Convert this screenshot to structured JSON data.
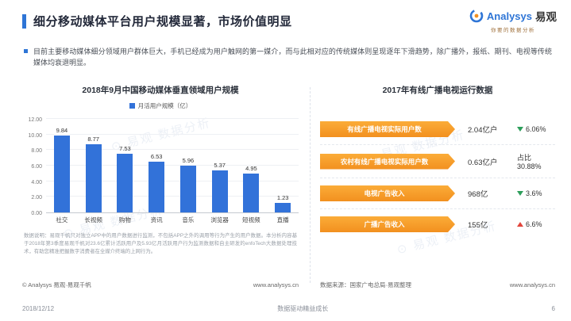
{
  "header": {
    "title": "细分移动媒体平台用户规模显著，市场价值明显",
    "accent_color": "#2E75D6"
  },
  "logo": {
    "brand_en": "Analysys",
    "brand_cn": "易观",
    "tagline": "你要的数据分析"
  },
  "intro": {
    "text": "目前主要移动媒体细分领域用户群体巨大，手机已经成为用户触网的第一媒介，而与此相对应的传统媒体则呈现逐年下滑趋势，除广播外，报纸、期刊、电视等传统媒体均衰退明显。"
  },
  "chart_data": {
    "type": "bar",
    "title": "2018年9月中国移动媒体垂直领域用户规模",
    "legend": "月活用户规模（亿）",
    "categories": [
      "社交",
      "长视频",
      "购物",
      "资讯",
      "音乐",
      "浏览器",
      "短视频",
      "直播"
    ],
    "values": [
      9.84,
      8.77,
      7.53,
      6.53,
      5.96,
      5.37,
      4.95,
      1.23
    ],
    "ylim": [
      0,
      12
    ],
    "ytick_step": 2,
    "ytick_labels": [
      "0.00",
      "2.00",
      "4.00",
      "6.00",
      "8.00",
      "10.00",
      "12.00"
    ],
    "bar_color": "#3272D9",
    "grid": true,
    "legend_position": "top"
  },
  "left_panel": {
    "footnote": "数据说明：易观千帆只对独立APP中的用户数据进行监测，不包括APP之外的调用等行为产生的用户数据。本分析内容基于2018年第3季度易观千帆对23.6亿累计活跃用户及5.93亿月活跃用户行为监测数据和自主研发的enfoTech大数据处理技术，有助您精准把握数字消费者在全媒介终端的上网行为。",
    "copyright": "© Analysys 易观·易观千帆",
    "website": "www.analysys.cn"
  },
  "right_panel": {
    "title": "2017年有线广播电视运行数据",
    "rows": [
      {
        "label": "有线广播电视实际用户数",
        "value": "2.04亿户",
        "direction": "down",
        "change": "6.06%"
      },
      {
        "label": "农村有线广播电视实际用户数",
        "value": "0.63亿户",
        "direction": "none",
        "change": "占比30.88%"
      },
      {
        "label": "电视广告收入",
        "value": "968亿",
        "direction": "down",
        "change": "3.6%"
      },
      {
        "label": "广播广告收入",
        "value": "155亿",
        "direction": "up",
        "change": "6.6%"
      }
    ],
    "source": "数据来源：国家广电总局·易观整理",
    "website": "www.analysys.cn"
  },
  "footer": {
    "date": "2018/12/12",
    "center": "数据驱动精益成长",
    "page": "6"
  },
  "watermark": {
    "text": "⊙ 易观  数据分析"
  }
}
